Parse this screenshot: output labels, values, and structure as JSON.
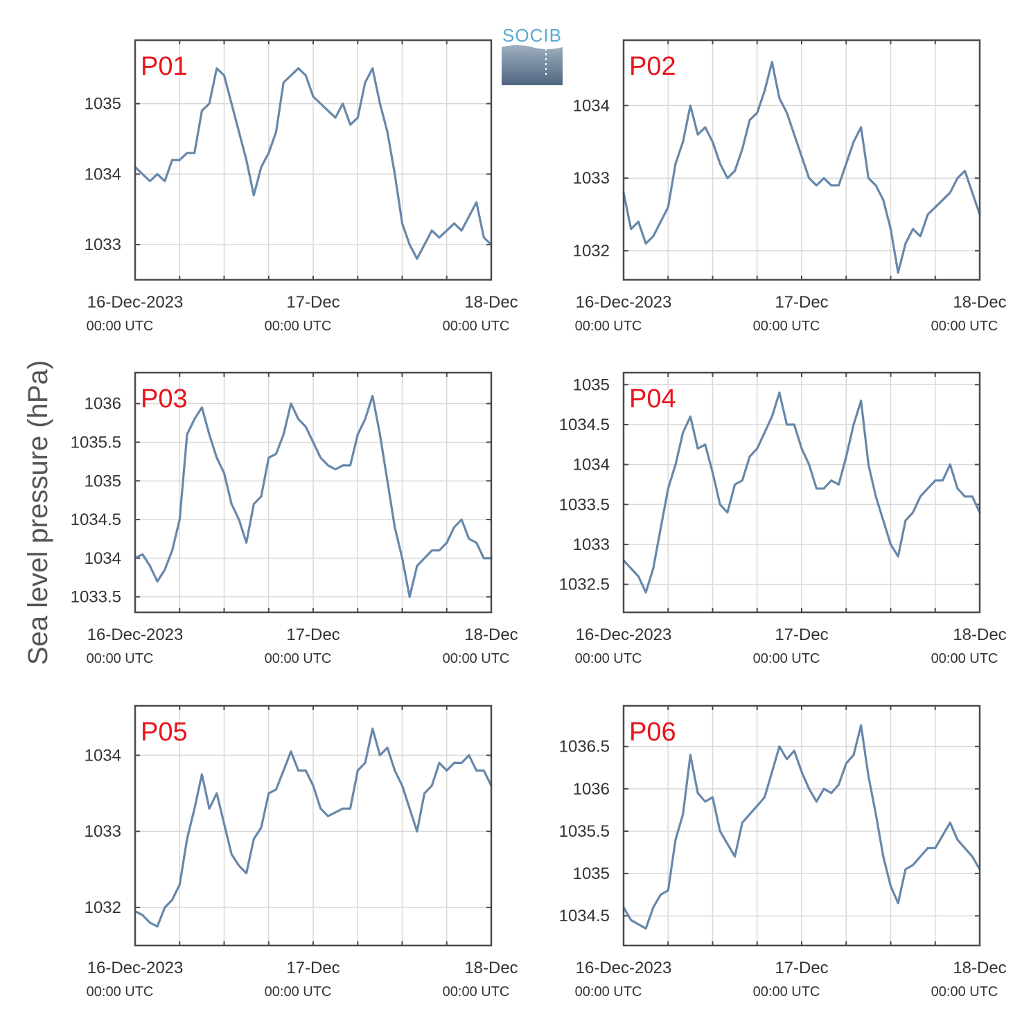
{
  "ylabel": "Sea level pressure (hPa)",
  "logo": {
    "text": "SOCIB"
  },
  "colors": {
    "series": "#6688aa",
    "station_label": "#e8141c",
    "frame": "#4a4a4a",
    "grid": "#d9d9d9"
  },
  "chart_data": [
    {
      "type": "line",
      "title": "P01",
      "xlabel": "",
      "ylabel": "Sea level pressure (hPa)",
      "xlim": [
        "2023-12-16 00:00",
        "2023-12-18 00:00"
      ],
      "xticks": [
        {
          "t": "2023-12-16 00:00",
          "label": "16-Dec-2023",
          "sub": "00:00 UTC"
        },
        {
          "t": "2023-12-17 00:00",
          "label": "17-Dec",
          "sub": "00:00 UTC"
        },
        {
          "t": "2023-12-18 00:00",
          "label": "18-Dec",
          "sub": "00:00 UTC"
        }
      ],
      "ylim": [
        1032.5,
        1035.9
      ],
      "yticks": [
        1033,
        1034,
        1035
      ],
      "grid": true,
      "series": [
        {
          "x_hours": [
            0,
            1,
            2,
            3,
            4,
            5,
            6,
            7,
            8,
            9,
            10,
            11,
            12,
            13,
            14,
            15,
            16,
            17,
            18,
            19,
            20,
            21,
            22,
            23,
            24,
            25,
            26,
            27,
            28,
            29,
            30,
            31,
            32,
            33,
            34,
            35,
            36,
            37,
            38,
            39,
            40,
            41,
            42,
            43,
            44,
            45,
            46,
            47,
            48
          ],
          "values": [
            1034.1,
            1034.0,
            1033.9,
            1034.0,
            1033.9,
            1034.2,
            1034.2,
            1034.3,
            1034.3,
            1034.9,
            1035.0,
            1035.5,
            1035.4,
            1035.0,
            1034.6,
            1034.2,
            1033.7,
            1034.1,
            1034.3,
            1034.6,
            1035.3,
            1035.4,
            1035.5,
            1035.4,
            1035.1,
            1035.0,
            1034.9,
            1034.8,
            1035.0,
            1034.7,
            1034.8,
            1035.3,
            1035.5,
            1035.0,
            1034.6,
            1034.0,
            1033.3,
            1033.0,
            1032.8,
            1033.0,
            1033.2,
            1033.1,
            1033.2,
            1033.3,
            1033.2,
            1033.4,
            1033.6,
            1033.1,
            1033.0
          ]
        }
      ]
    },
    {
      "type": "line",
      "title": "P02",
      "xlabel": "",
      "ylabel": "Sea level pressure (hPa)",
      "xlim": [
        "2023-12-16 00:00",
        "2023-12-18 00:00"
      ],
      "xticks": [
        {
          "t": "2023-12-16 00:00",
          "label": "16-Dec-2023",
          "sub": "00:00 UTC"
        },
        {
          "t": "2023-12-17 00:00",
          "label": "17-Dec",
          "sub": "00:00 UTC"
        },
        {
          "t": "2023-12-18 00:00",
          "label": "18-Dec",
          "sub": "00:00 UTC"
        }
      ],
      "ylim": [
        1031.6,
        1034.9
      ],
      "yticks": [
        1032,
        1033,
        1034
      ],
      "grid": true,
      "series": [
        {
          "x_hours": [
            0,
            1,
            2,
            3,
            4,
            5,
            6,
            7,
            8,
            9,
            10,
            11,
            12,
            13,
            14,
            15,
            16,
            17,
            18,
            19,
            20,
            21,
            22,
            23,
            24,
            25,
            26,
            27,
            28,
            29,
            30,
            31,
            32,
            33,
            34,
            35,
            36,
            37,
            38,
            39,
            40,
            41,
            42,
            43,
            44,
            45,
            46,
            47,
            48
          ],
          "values": [
            1032.8,
            1032.3,
            1032.4,
            1032.1,
            1032.2,
            1032.4,
            1032.6,
            1033.2,
            1033.5,
            1034.0,
            1033.6,
            1033.7,
            1033.5,
            1033.2,
            1033.0,
            1033.1,
            1033.4,
            1033.8,
            1033.9,
            1034.2,
            1034.6,
            1034.1,
            1033.9,
            1033.6,
            1033.3,
            1033.0,
            1032.9,
            1033.0,
            1032.9,
            1032.9,
            1033.2,
            1033.5,
            1033.7,
            1033.0,
            1032.9,
            1032.7,
            1032.3,
            1031.7,
            1032.1,
            1032.3,
            1032.2,
            1032.5,
            1032.6,
            1032.7,
            1032.8,
            1033.0,
            1033.1,
            1032.8,
            1032.5
          ]
        }
      ]
    },
    {
      "type": "line",
      "title": "P03",
      "xlabel": "",
      "ylabel": "Sea level pressure (hPa)",
      "xlim": [
        "2023-12-16 00:00",
        "2023-12-18 00:00"
      ],
      "xticks": [
        {
          "t": "2023-12-16 00:00",
          "label": "16-Dec-2023",
          "sub": "00:00 UTC"
        },
        {
          "t": "2023-12-17 00:00",
          "label": "17-Dec",
          "sub": "00:00 UTC"
        },
        {
          "t": "2023-12-18 00:00",
          "label": "18-Dec",
          "sub": "00:00 UTC"
        }
      ],
      "ylim": [
        1033.3,
        1036.4
      ],
      "yticks": [
        1033.5,
        1034,
        1034.5,
        1035,
        1035.5,
        1036
      ],
      "grid": true,
      "series": [
        {
          "x_hours": [
            0,
            1,
            2,
            3,
            4,
            5,
            6,
            7,
            8,
            9,
            10,
            11,
            12,
            13,
            14,
            15,
            16,
            17,
            18,
            19,
            20,
            21,
            22,
            23,
            24,
            25,
            26,
            27,
            28,
            29,
            30,
            31,
            32,
            33,
            34,
            35,
            36,
            37,
            38,
            39,
            40,
            41,
            42,
            43,
            44,
            45,
            46,
            47,
            48
          ],
          "values": [
            1034.0,
            1034.05,
            1033.9,
            1033.7,
            1033.85,
            1034.1,
            1034.5,
            1035.6,
            1035.8,
            1035.95,
            1035.6,
            1035.3,
            1035.1,
            1034.7,
            1034.5,
            1034.2,
            1034.7,
            1034.8,
            1035.3,
            1035.35,
            1035.6,
            1036.0,
            1035.8,
            1035.7,
            1035.5,
            1035.3,
            1035.2,
            1035.15,
            1035.2,
            1035.2,
            1035.6,
            1035.8,
            1036.1,
            1035.6,
            1035.0,
            1034.4,
            1034.0,
            1033.5,
            1033.9,
            1034.0,
            1034.1,
            1034.1,
            1034.2,
            1034.4,
            1034.5,
            1034.25,
            1034.2,
            1034.0,
            1034.0
          ]
        }
      ]
    },
    {
      "type": "line",
      "title": "P04",
      "xlabel": "",
      "ylabel": "Sea level pressure (hPa)",
      "xlim": [
        "2023-12-16 00:00",
        "2023-12-18 00:00"
      ],
      "xticks": [
        {
          "t": "2023-12-16 00:00",
          "label": "16-Dec-2023",
          "sub": "00:00 UTC"
        },
        {
          "t": "2023-12-17 00:00",
          "label": "17-Dec",
          "sub": "00:00 UTC"
        },
        {
          "t": "2023-12-18 00:00",
          "label": "18-Dec",
          "sub": "00:00 UTC"
        }
      ],
      "ylim": [
        1032.15,
        1035.15
      ],
      "yticks": [
        1032.5,
        1033,
        1033.5,
        1034,
        1034.5,
        1035
      ],
      "grid": true,
      "series": [
        {
          "x_hours": [
            0,
            1,
            2,
            3,
            4,
            5,
            6,
            7,
            8,
            9,
            10,
            11,
            12,
            13,
            14,
            15,
            16,
            17,
            18,
            19,
            20,
            21,
            22,
            23,
            24,
            25,
            26,
            27,
            28,
            29,
            30,
            31,
            32,
            33,
            34,
            35,
            36,
            37,
            38,
            39,
            40,
            41,
            42,
            43,
            44,
            45,
            46,
            47,
            48
          ],
          "values": [
            1032.8,
            1032.7,
            1032.6,
            1032.4,
            1032.7,
            1033.2,
            1033.7,
            1034.0,
            1034.4,
            1034.6,
            1034.2,
            1034.25,
            1033.9,
            1033.5,
            1033.4,
            1033.75,
            1033.8,
            1034.1,
            1034.2,
            1034.4,
            1034.6,
            1034.9,
            1034.5,
            1034.5,
            1034.2,
            1034.0,
            1033.7,
            1033.7,
            1033.8,
            1033.75,
            1034.1,
            1034.5,
            1034.8,
            1034.0,
            1033.6,
            1033.3,
            1033.0,
            1032.85,
            1033.3,
            1033.4,
            1033.6,
            1033.7,
            1033.8,
            1033.8,
            1034.0,
            1033.7,
            1033.6,
            1033.6,
            1033.4
          ]
        }
      ]
    },
    {
      "type": "line",
      "title": "P05",
      "xlabel": "",
      "ylabel": "Sea level pressure (hPa)",
      "xlim": [
        "2023-12-16 00:00",
        "2023-12-18 00:00"
      ],
      "xticks": [
        {
          "t": "2023-12-16 00:00",
          "label": "16-Dec-2023",
          "sub": "00:00 UTC"
        },
        {
          "t": "2023-12-17 00:00",
          "label": "17-Dec",
          "sub": "00:00 UTC"
        },
        {
          "t": "2023-12-18 00:00",
          "label": "18-Dec",
          "sub": "00:00 UTC"
        }
      ],
      "ylim": [
        1031.5,
        1034.65
      ],
      "yticks": [
        1032,
        1033,
        1034
      ],
      "grid": true,
      "series": [
        {
          "x_hours": [
            0,
            1,
            2,
            3,
            4,
            5,
            6,
            7,
            8,
            9,
            10,
            11,
            12,
            13,
            14,
            15,
            16,
            17,
            18,
            19,
            20,
            21,
            22,
            23,
            24,
            25,
            26,
            27,
            28,
            29,
            30,
            31,
            32,
            33,
            34,
            35,
            36,
            37,
            38,
            39,
            40,
            41,
            42,
            43,
            44,
            45,
            46,
            47,
            48
          ],
          "values": [
            1031.95,
            1031.9,
            1031.8,
            1031.75,
            1032.0,
            1032.1,
            1032.3,
            1032.9,
            1033.3,
            1033.75,
            1033.3,
            1033.5,
            1033.1,
            1032.7,
            1032.55,
            1032.45,
            1032.9,
            1033.05,
            1033.5,
            1033.55,
            1033.8,
            1034.05,
            1033.8,
            1033.8,
            1033.6,
            1033.3,
            1033.2,
            1033.25,
            1033.3,
            1033.3,
            1033.8,
            1033.9,
            1034.35,
            1034.0,
            1034.1,
            1033.8,
            1033.6,
            1033.3,
            1033.0,
            1033.5,
            1033.6,
            1033.9,
            1033.8,
            1033.9,
            1033.9,
            1034.0,
            1033.8,
            1033.8,
            1033.6
          ]
        }
      ]
    },
    {
      "type": "line",
      "title": "P06",
      "xlabel": "",
      "ylabel": "Sea level pressure (hPa)",
      "xlim": [
        "2023-12-16 00:00",
        "2023-12-18 00:00"
      ],
      "xticks": [
        {
          "t": "2023-12-16 00:00",
          "label": "16-Dec-2023",
          "sub": "00:00 UTC"
        },
        {
          "t": "2023-12-17 00:00",
          "label": "17-Dec",
          "sub": "00:00 UTC"
        },
        {
          "t": "2023-12-18 00:00",
          "label": "18-Dec",
          "sub": "00:00 UTC"
        }
      ],
      "ylim": [
        1034.15,
        1036.98
      ],
      "yticks": [
        1034.5,
        1035,
        1035.5,
        1036,
        1036.5
      ],
      "grid": true,
      "series": [
        {
          "x_hours": [
            0,
            1,
            2,
            3,
            4,
            5,
            6,
            7,
            8,
            9,
            10,
            11,
            12,
            13,
            14,
            15,
            16,
            17,
            18,
            19,
            20,
            21,
            22,
            23,
            24,
            25,
            26,
            27,
            28,
            29,
            30,
            31,
            32,
            33,
            34,
            35,
            36,
            37,
            38,
            39,
            40,
            41,
            42,
            43,
            44,
            45,
            46,
            47,
            48
          ],
          "values": [
            1034.6,
            1034.45,
            1034.4,
            1034.35,
            1034.6,
            1034.75,
            1034.8,
            1035.4,
            1035.7,
            1036.4,
            1035.95,
            1035.85,
            1035.9,
            1035.5,
            1035.35,
            1035.2,
            1035.6,
            1035.7,
            1035.8,
            1035.9,
            1036.2,
            1036.5,
            1036.35,
            1036.45,
            1036.2,
            1036.0,
            1035.85,
            1036.0,
            1035.95,
            1036.05,
            1036.3,
            1036.4,
            1036.75,
            1036.15,
            1035.7,
            1035.2,
            1034.85,
            1034.65,
            1035.05,
            1035.1,
            1035.2,
            1035.3,
            1035.3,
            1035.45,
            1035.6,
            1035.4,
            1035.3,
            1035.2,
            1035.05
          ]
        }
      ]
    }
  ]
}
